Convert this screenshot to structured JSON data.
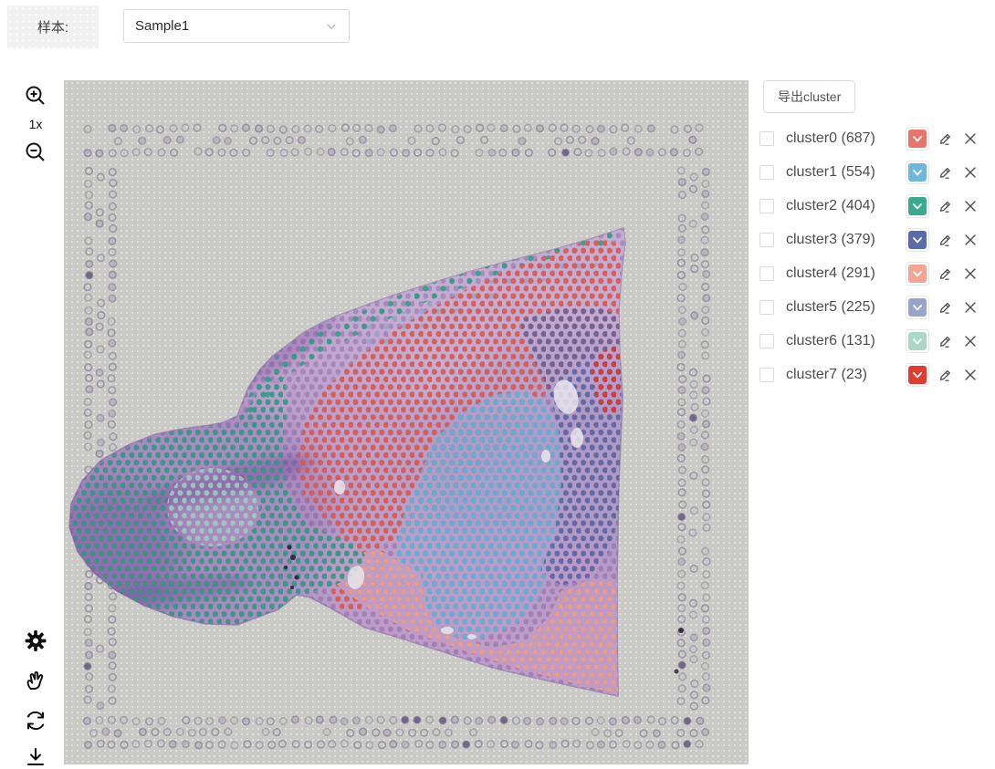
{
  "header": {
    "sample_label": "样本:",
    "sample_dropdown": {
      "value": "Sample1",
      "chevron_icon": "chevron-down-icon"
    }
  },
  "toolbar": {
    "zoom_level": "1x",
    "icons": [
      "zoom-in-icon",
      "zoom-out-icon",
      "settings-gear-icon",
      "hand-icon",
      "refresh-icon",
      "download-icon"
    ]
  },
  "canvas": {
    "background": "#c9cac6",
    "fiducial_ring_color": "#7a7090",
    "tissue_base_color": "#b99cc9",
    "spot_colors": {
      "c0": "#e0584a",
      "c1": "#5fb3d6",
      "c2": "#2d9c82",
      "c3": "#4d5f9c",
      "c4": "#f0a18c",
      "c5": "#9aa6c8",
      "c6": "#9ed2c2",
      "c7": "#d8312c"
    }
  },
  "panel": {
    "export_button_label": "导出cluster",
    "clusters": [
      {
        "name": "cluster0",
        "count": 687,
        "count_display": "(687)",
        "color": "#e8756a"
      },
      {
        "name": "cluster1",
        "count": 554,
        "count_display": "(554)",
        "color": "#6fb8d9"
      },
      {
        "name": "cluster2",
        "count": 404,
        "count_display": "(404)",
        "color": "#3aa98e"
      },
      {
        "name": "cluster3",
        "count": 379,
        "count_display": "(379)",
        "color": "#5a6aab"
      },
      {
        "name": "cluster4",
        "count": 291,
        "count_display": "(291)",
        "color": "#f2a593"
      },
      {
        "name": "cluster5",
        "count": 225,
        "count_display": "(225)",
        "color": "#9aa3c9"
      },
      {
        "name": "cluster6",
        "count": 131,
        "count_display": "(131)",
        "color": "#a9d9c4"
      },
      {
        "name": "cluster7",
        "count": 23,
        "count_display": "(23)",
        "color": "#e03c34"
      }
    ]
  }
}
